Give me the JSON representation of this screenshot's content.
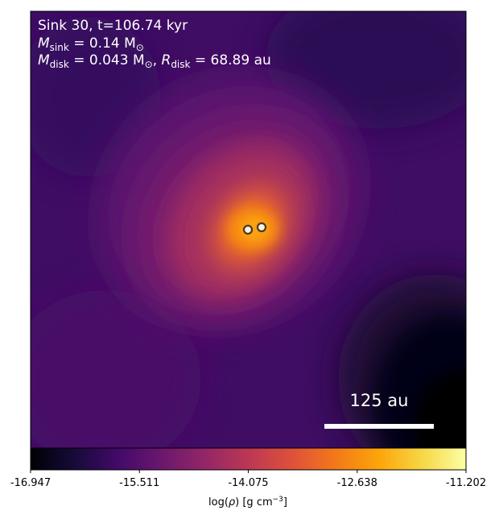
{
  "panel": {
    "title": "Sink 30, t=106.74 kyr",
    "sink_mass": {
      "symbol": "M",
      "subscript": "sink",
      "value_text": " = 0.14 M",
      "unit_subscript": "⊙"
    },
    "disk": {
      "mass_symbol": "M",
      "mass_subscript": "disk",
      "mass_value_text": " = 0.043 M",
      "mass_unit_subscript": "⊙",
      "sep": ", ",
      "radius_symbol": "R",
      "radius_subscript": "disk",
      "radius_value_text": " = 68.89 au"
    }
  },
  "scale_bar": {
    "label": "125 au",
    "color": "#ffffff"
  },
  "sinks": {
    "count": 2,
    "fill": "#f5f1e6",
    "ring": "#4a3a20",
    "halo": "#ff9a12"
  },
  "colorbar": {
    "colormap": "inferno",
    "min": -16.947,
    "max": -11.202,
    "ticks": [
      "-16.947",
      "-15.511",
      "-14.075",
      "-12.638",
      "-11.202"
    ],
    "label_prefix": "log(",
    "label_symbol": "ρ",
    "label_mid": ") [g cm",
    "label_exp": "−3",
    "label_suffix": "]"
  }
}
